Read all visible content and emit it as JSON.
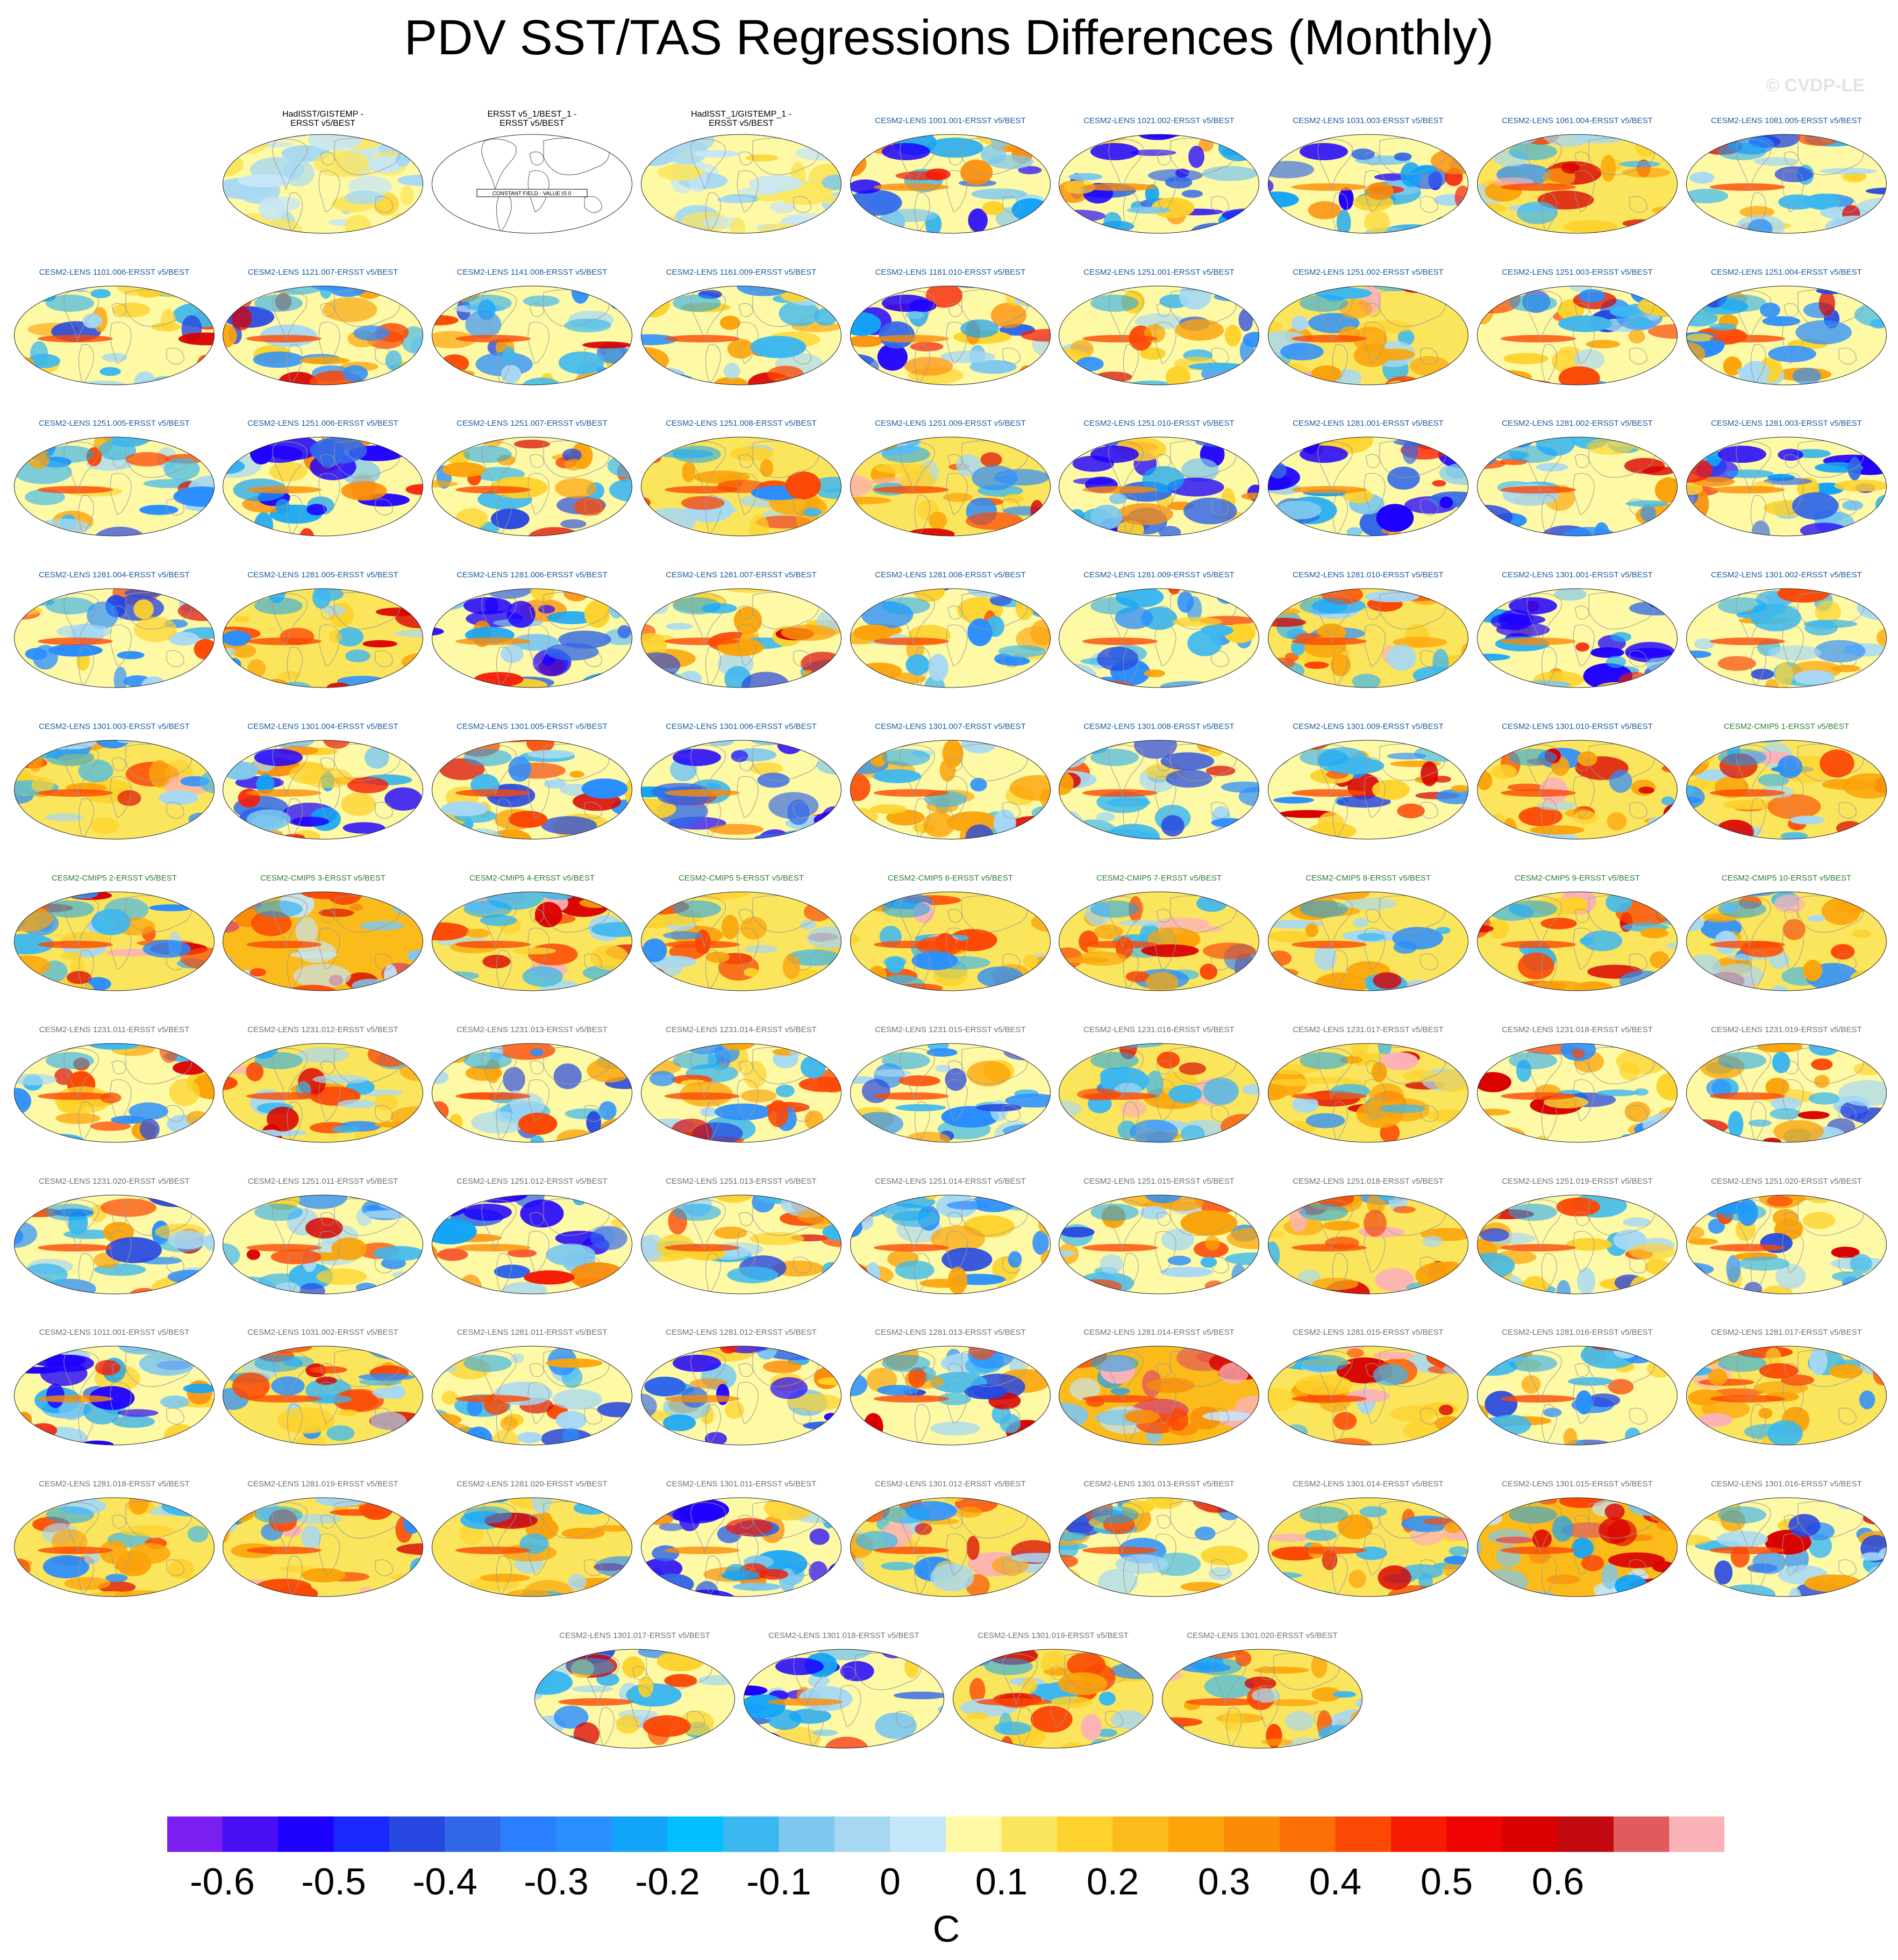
{
  "title": "PDV SST/TAS Regressions Differences (Monthly)",
  "watermark": "© CVDP-LE",
  "chart_data": {
    "type": "heatmap",
    "title": "PDV SST/TAS Regressions Differences (Monthly)",
    "colorbar": {
      "units": "C",
      "levels": [
        -0.65,
        -0.6,
        -0.55,
        -0.5,
        -0.45,
        -0.4,
        -0.35,
        -0.3,
        -0.25,
        -0.2,
        -0.15,
        -0.1,
        -0.05,
        0,
        0.05,
        0.1,
        0.15,
        0.2,
        0.25,
        0.3,
        0.35,
        0.4,
        0.45,
        0.5,
        0.55,
        0.6,
        0.65
      ],
      "tick_labels": [
        "-0.6",
        "-0.5",
        "-0.4",
        "-0.3",
        "-0.2",
        "-0.1",
        "0",
        "0.1",
        "0.2",
        "0.3",
        "0.4",
        "0.5",
        "0.6"
      ],
      "colors": [
        "#7b1ff0",
        "#4a10f5",
        "#1e00ff",
        "#1a28ff",
        "#2748e0",
        "#3268e8",
        "#2a7fff",
        "#2a8eff",
        "#12a4f8",
        "#02c0ff",
        "#3cb8f0",
        "#7dc8ee",
        "#a6d8f4",
        "#c5e6f8",
        "#fef9a4",
        "#fbe55c",
        "#fdd22c",
        "#fbbb1a",
        "#fba40a",
        "#fb8c08",
        "#fb6f05",
        "#fb4805",
        "#f71b04",
        "#ef0202",
        "#d90000",
        "#c20a10",
        "#e15a5c",
        "#fbb2b6"
      ]
    },
    "panels": [
      {
        "title": "HadISST/GISTEMP -\nERSST v5/BEST",
        "color": "#000000",
        "pattern": "obs"
      },
      {
        "title": "ERSST v5_1/BEST_1 -\nERSST v5/BEST",
        "color": "#000000",
        "pattern": "constant",
        "note": "CONSTANT FIELD - VALUE IS 0"
      },
      {
        "title": "HadISST_1/GISTEMP_1 -\nERSST v5/BEST",
        "color": "#000000",
        "pattern": "obs"
      },
      {
        "title": "CESM2-LENS 1001.001-ERSST v5/BEST",
        "color": "#1a5a9c",
        "pattern": "cold"
      },
      {
        "title": "CESM2-LENS 1021.002-ERSST v5/BEST",
        "color": "#1a5a9c",
        "pattern": "cold"
      },
      {
        "title": "CESM2-LENS 1031.003-ERSST v5/BEST",
        "color": "#1a5a9c",
        "pattern": "cold"
      },
      {
        "title": "CESM2-LENS 1061.004-ERSST v5/BEST",
        "color": "#1a5a9c",
        "pattern": "warm"
      },
      {
        "title": "CESM2-LENS 1081.005-ERSST v5/BEST",
        "color": "#1a5a9c",
        "pattern": "mixed"
      },
      {
        "title": "CESM2-LENS 1101.006-ERSST v5/BEST",
        "color": "#1a5a9c",
        "pattern": "mixed"
      },
      {
        "title": "CESM2-LENS 1121.007-ERSST v5/BEST",
        "color": "#1a5a9c",
        "pattern": "mixed"
      },
      {
        "title": "CESM2-LENS 1141.008-ERSST v5/BEST",
        "color": "#1a5a9c",
        "pattern": "mixed"
      },
      {
        "title": "CESM2-LENS 1161.009-ERSST v5/BEST",
        "color": "#1a5a9c",
        "pattern": "mixed"
      },
      {
        "title": "CESM2-LENS 1181.010-ERSST v5/BEST",
        "color": "#1a5a9c",
        "pattern": "cold"
      },
      {
        "title": "CESM2-LENS 1251.001-ERSST v5/BEST",
        "color": "#1a5a9c",
        "pattern": "mixed"
      },
      {
        "title": "CESM2-LENS 1251.002-ERSST v5/BEST",
        "color": "#1a5a9c",
        "pattern": "warm"
      },
      {
        "title": "CESM2-LENS 1251.003-ERSST v5/BEST",
        "color": "#1a5a9c",
        "pattern": "mixed"
      },
      {
        "title": "CESM2-LENS 1251.004-ERSST v5/BEST",
        "color": "#1a5a9c",
        "pattern": "mixed"
      },
      {
        "title": "CESM2-LENS 1251.005-ERSST v5/BEST",
        "color": "#1a5a9c",
        "pattern": "mixed"
      },
      {
        "title": "CESM2-LENS 1251.006-ERSST v5/BEST",
        "color": "#1a5a9c",
        "pattern": "cold"
      },
      {
        "title": "CESM2-LENS 1251.007-ERSST v5/BEST",
        "color": "#1a5a9c",
        "pattern": "mixed"
      },
      {
        "title": "CESM2-LENS 1251.008-ERSST v5/BEST",
        "color": "#1a5a9c",
        "pattern": "warm"
      },
      {
        "title": "CESM2-LENS 1251.009-ERSST v5/BEST",
        "color": "#1a5a9c",
        "pattern": "warm"
      },
      {
        "title": "CESM2-LENS 1251.010-ERSST v5/BEST",
        "color": "#1a5a9c",
        "pattern": "cold"
      },
      {
        "title": "CESM2-LENS 1281.001-ERSST v5/BEST",
        "color": "#1a5a9c",
        "pattern": "cold"
      },
      {
        "title": "CESM2-LENS 1281.002-ERSST v5/BEST",
        "color": "#1a5a9c",
        "pattern": "mixed"
      },
      {
        "title": "CESM2-LENS 1281.003-ERSST v5/BEST",
        "color": "#1a5a9c",
        "pattern": "cold"
      },
      {
        "title": "CESM2-LENS 1281.004-ERSST v5/BEST",
        "color": "#1a5a9c",
        "pattern": "mixed"
      },
      {
        "title": "CESM2-LENS 1281.005-ERSST v5/BEST",
        "color": "#1a5a9c",
        "pattern": "warm"
      },
      {
        "title": "CESM2-LENS 1281.006-ERSST v5/BEST",
        "color": "#1a5a9c",
        "pattern": "cold"
      },
      {
        "title": "CESM2-LENS 1281.007-ERSST v5/BEST",
        "color": "#1a5a9c",
        "pattern": "mixed"
      },
      {
        "title": "CESM2-LENS 1281.008-ERSST v5/BEST",
        "color": "#1a5a9c",
        "pattern": "mixed"
      },
      {
        "title": "CESM2-LENS 1281.009-ERSST v5/BEST",
        "color": "#1a5a9c",
        "pattern": "mixed"
      },
      {
        "title": "CESM2-LENS 1281.010-ERSST v5/BEST",
        "color": "#1a5a9c",
        "pattern": "warm"
      },
      {
        "title": "CESM2-LENS 1301.001-ERSST v5/BEST",
        "color": "#1a5a9c",
        "pattern": "cold"
      },
      {
        "title": "CESM2-LENS 1301.002-ERSST v5/BEST",
        "color": "#1a5a9c",
        "pattern": "mixed"
      },
      {
        "title": "CESM2-LENS 1301.003-ERSST v5/BEST",
        "color": "#1a5a9c",
        "pattern": "warm"
      },
      {
        "title": "CESM2-LENS 1301.004-ERSST v5/BEST",
        "color": "#1a5a9c",
        "pattern": "cold"
      },
      {
        "title": "CESM2-LENS 1301.005-ERSST v5/BEST",
        "color": "#1a5a9c",
        "pattern": "mixed"
      },
      {
        "title": "CESM2-LENS 1301.006-ERSST v5/BEST",
        "color": "#1a5a9c",
        "pattern": "cold"
      },
      {
        "title": "CESM2-LENS 1301.007-ERSST v5/BEST",
        "color": "#1a5a9c",
        "pattern": "mixed"
      },
      {
        "title": "CESM2-LENS 1301.008-ERSST v5/BEST",
        "color": "#1a5a9c",
        "pattern": "mixed"
      },
      {
        "title": "CESM2-LENS 1301.009-ERSST v5/BEST",
        "color": "#1a5a9c",
        "pattern": "mixed"
      },
      {
        "title": "CESM2-LENS 1301.010-ERSST v5/BEST",
        "color": "#1a5a9c",
        "pattern": "warm"
      },
      {
        "title": "CESM2-CMIP5 1-ERSST v5/BEST",
        "color": "#2e7d32",
        "pattern": "warm"
      },
      {
        "title": "CESM2-CMIP5 2-ERSST v5/BEST",
        "color": "#2e7d32",
        "pattern": "warm"
      },
      {
        "title": "CESM2-CMIP5 3-ERSST v5/BEST",
        "color": "#2e7d32",
        "pattern": "hot"
      },
      {
        "title": "CESM2-CMIP5 4-ERSST v5/BEST",
        "color": "#2e7d32",
        "pattern": "warm"
      },
      {
        "title": "CESM2-CMIP5 5-ERSST v5/BEST",
        "color": "#2e7d32",
        "pattern": "warm"
      },
      {
        "title": "CESM2-CMIP5 6-ERSST v5/BEST",
        "color": "#2e7d32",
        "pattern": "warm"
      },
      {
        "title": "CESM2-CMIP5 7-ERSST v5/BEST",
        "color": "#2e7d32",
        "pattern": "warm"
      },
      {
        "title": "CESM2-CMIP5 8-ERSST v5/BEST",
        "color": "#2e7d32",
        "pattern": "warm"
      },
      {
        "title": "CESM2-CMIP5 9-ERSST v5/BEST",
        "color": "#2e7d32",
        "pattern": "warm"
      },
      {
        "title": "CESM2-CMIP5 10-ERSST v5/BEST",
        "color": "#2e7d32",
        "pattern": "warm"
      },
      {
        "title": "CESM2-LENS 1231.011-ERSST v5/BEST",
        "color": "#707070",
        "pattern": "mixed"
      },
      {
        "title": "CESM2-LENS 1231.012-ERSST v5/BEST",
        "color": "#707070",
        "pattern": "warm"
      },
      {
        "title": "CESM2-LENS 1231.013-ERSST v5/BEST",
        "color": "#707070",
        "pattern": "mixed"
      },
      {
        "title": "CESM2-LENS 1231.014-ERSST v5/BEST",
        "color": "#707070",
        "pattern": "mixed"
      },
      {
        "title": "CESM2-LENS 1231.015-ERSST v5/BEST",
        "color": "#707070",
        "pattern": "mixed"
      },
      {
        "title": "CESM2-LENS 1231.016-ERSST v5/BEST",
        "color": "#707070",
        "pattern": "warm"
      },
      {
        "title": "CESM2-LENS 1231.017-ERSST v5/BEST",
        "color": "#707070",
        "pattern": "warm"
      },
      {
        "title": "CESM2-LENS 1231.018-ERSST v5/BEST",
        "color": "#707070",
        "pattern": "mixed"
      },
      {
        "title": "CESM2-LENS 1231.019-ERSST v5/BEST",
        "color": "#707070",
        "pattern": "mixed"
      },
      {
        "title": "CESM2-LENS 1231.020-ERSST v5/BEST",
        "color": "#707070",
        "pattern": "mixed"
      },
      {
        "title": "CESM2-LENS 1251.011-ERSST v5/BEST",
        "color": "#707070",
        "pattern": "mixed"
      },
      {
        "title": "CESM2-LENS 1251.012-ERSST v5/BEST",
        "color": "#707070",
        "pattern": "cold"
      },
      {
        "title": "CESM2-LENS 1251.013-ERSST v5/BEST",
        "color": "#707070",
        "pattern": "mixed"
      },
      {
        "title": "CESM2-LENS 1251.014-ERSST v5/BEST",
        "color": "#707070",
        "pattern": "mixed"
      },
      {
        "title": "CESM2-LENS 1251.015-ERSST v5/BEST",
        "color": "#707070",
        "pattern": "mixed"
      },
      {
        "title": "CESM2-LENS 1251.018-ERSST v5/BEST",
        "color": "#707070",
        "pattern": "warm"
      },
      {
        "title": "CESM2-LENS 1251.019-ERSST v5/BEST",
        "color": "#707070",
        "pattern": "mixed"
      },
      {
        "title": "CESM2-LENS 1251.020-ERSST v5/BEST",
        "color": "#707070",
        "pattern": "mixed"
      },
      {
        "title": "CESM2-LENS 1011.001-ERSST v5/BEST",
        "color": "#707070",
        "pattern": "cold"
      },
      {
        "title": "CESM2-LENS 1031.002-ERSST v5/BEST",
        "color": "#707070",
        "pattern": "warm"
      },
      {
        "title": "CESM2-LENS 1281.011-ERSST v5/BEST",
        "color": "#707070",
        "pattern": "mixed"
      },
      {
        "title": "CESM2-LENS 1281.012-ERSST v5/BEST",
        "color": "#707070",
        "pattern": "cold"
      },
      {
        "title": "CESM2-LENS 1281.013-ERSST v5/BEST",
        "color": "#707070",
        "pattern": "mixed"
      },
      {
        "title": "CESM2-LENS 1281.014-ERSST v5/BEST",
        "color": "#707070",
        "pattern": "hot"
      },
      {
        "title": "CESM2-LENS 1281.015-ERSST v5/BEST",
        "color": "#707070",
        "pattern": "warm"
      },
      {
        "title": "CESM2-LENS 1281.016-ERSST v5/BEST",
        "color": "#707070",
        "pattern": "mixed"
      },
      {
        "title": "CESM2-LENS 1281.017-ERSST v5/BEST",
        "color": "#707070",
        "pattern": "warm"
      },
      {
        "title": "CESM2-LENS 1281.018-ERSST v5/BEST",
        "color": "#707070",
        "pattern": "warm"
      },
      {
        "title": "CESM2-LENS 1281.019-ERSST v5/BEST",
        "color": "#707070",
        "pattern": "warm"
      },
      {
        "title": "CESM2-LENS 1281.020-ERSST v5/BEST",
        "color": "#707070",
        "pattern": "warm"
      },
      {
        "title": "CESM2-LENS 1301.011-ERSST v5/BEST",
        "color": "#707070",
        "pattern": "cold"
      },
      {
        "title": "CESM2-LENS 1301.012-ERSST v5/BEST",
        "color": "#707070",
        "pattern": "warm"
      },
      {
        "title": "CESM2-LENS 1301.013-ERSST v5/BEST",
        "color": "#707070",
        "pattern": "mixed"
      },
      {
        "title": "CESM2-LENS 1301.014-ERSST v5/BEST",
        "color": "#707070",
        "pattern": "warm"
      },
      {
        "title": "CESM2-LENS 1301.015-ERSST v5/BEST",
        "color": "#707070",
        "pattern": "hot"
      },
      {
        "title": "CESM2-LENS 1301.016-ERSST v5/BEST",
        "color": "#707070",
        "pattern": "mixed"
      },
      {
        "title": "CESM2-LENS 1301.017-ERSST v5/BEST",
        "color": "#707070",
        "pattern": "mixed"
      },
      {
        "title": "CESM2-LENS 1301.018-ERSST v5/BEST",
        "color": "#707070",
        "pattern": "cold"
      },
      {
        "title": "CESM2-LENS 1301.019-ERSST v5/BEST",
        "color": "#707070",
        "pattern": "warm"
      },
      {
        "title": "CESM2-LENS 1301.020-ERSST v5/BEST",
        "color": "#707070",
        "pattern": "warm"
      }
    ]
  }
}
